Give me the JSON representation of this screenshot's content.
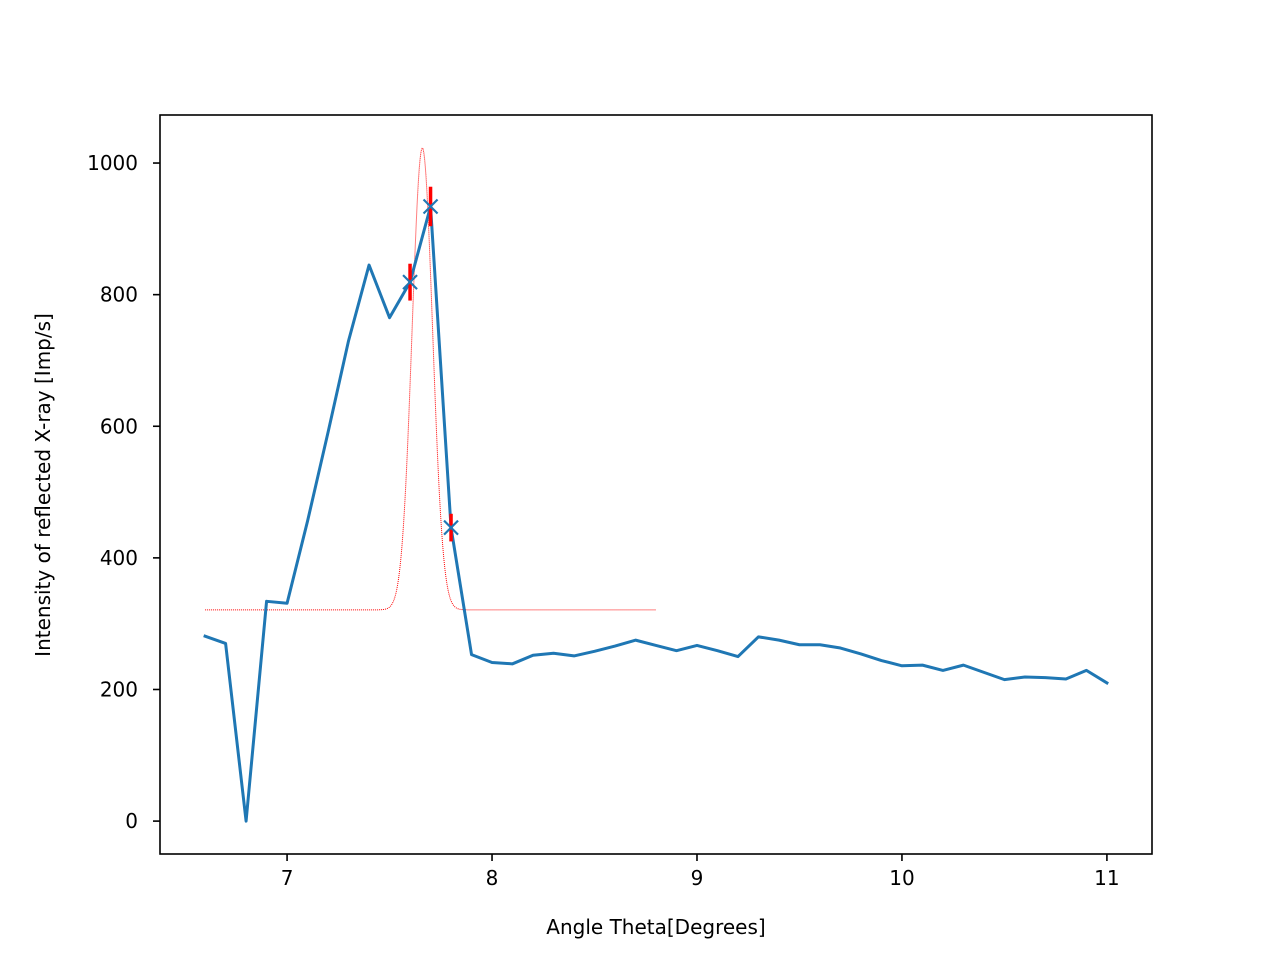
{
  "chart_data": {
    "type": "line",
    "title": "",
    "xlabel": "Angle Theta[Degrees]",
    "ylabel": "Intensity of reflected X-ray [Imp/s]",
    "xlim": [
      6.38,
      11.22
    ],
    "ylim": [
      -50,
      1073
    ],
    "xticks": [
      7,
      8,
      9,
      10,
      11
    ],
    "yticks": [
      0,
      200,
      400,
      600,
      800,
      1000
    ],
    "grid": false,
    "legend": "none",
    "series": [
      {
        "kind": "line",
        "color": "#1f77b4",
        "x": [
          6.6,
          6.7,
          6.8,
          6.9,
          7.0,
          7.1,
          7.2,
          7.3,
          7.4,
          7.5,
          7.6,
          7.7,
          7.8,
          7.9,
          8.0,
          8.1,
          8.2,
          8.3,
          8.4,
          8.5,
          8.6,
          8.7,
          8.8,
          8.9,
          9.0,
          9.1,
          9.2,
          9.3,
          9.4,
          9.5,
          9.6,
          9.7,
          9.8,
          9.9,
          10.0,
          10.1,
          10.2,
          10.3,
          10.4,
          10.5,
          10.6,
          10.7,
          10.8,
          10.9,
          11.0
        ],
        "y": [
          281,
          270,
          0,
          334,
          331,
          456,
          591,
          730,
          845,
          765,
          819,
          934,
          446,
          253,
          241,
          239,
          252,
          255,
          251,
          258,
          266,
          275,
          267,
          259,
          267,
          259,
          250,
          280,
          275,
          268,
          268,
          263,
          254,
          244,
          236,
          237,
          229,
          237,
          226,
          215,
          219,
          218,
          216,
          229,
          210
        ]
      },
      {
        "kind": "markers",
        "marker": "x",
        "color": "#1f77b4",
        "x": [
          7.6,
          7.7,
          7.8
        ],
        "y": [
          819,
          934,
          446
        ]
      },
      {
        "kind": "errorbars",
        "color": "#ff0000",
        "x": [
          7.6,
          7.7,
          7.8
        ],
        "y": [
          819,
          934,
          446
        ],
        "yerr": [
          28,
          30,
          21
        ]
      },
      {
        "kind": "gaussian_fit",
        "color": "#ff0000",
        "style": "dotted",
        "xmin": 6.6,
        "xmax": 8.8,
        "baseline": 321,
        "amplitude": 702,
        "center": 7.66,
        "sigma": 0.05
      }
    ]
  }
}
